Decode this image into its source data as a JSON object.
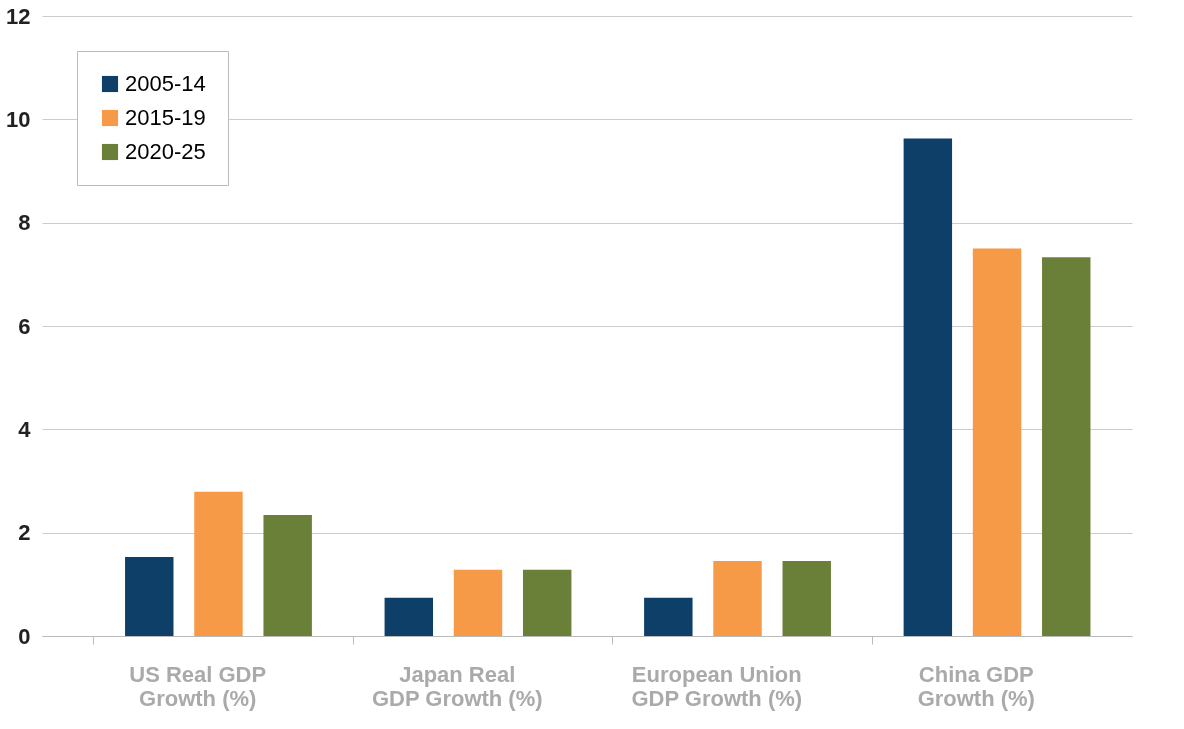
{
  "chart_data": {
    "type": "bar",
    "categories": [
      "US Real GDP\nGrowth (%)",
      "Japan Real\nGDP Growth (%)",
      "European Union\nGDP Growth (%)",
      "China GDP\nGrowth (%)"
    ],
    "series": [
      {
        "name": "2005-14",
        "color": "#0d3f68",
        "values": [
          1.53,
          0.74,
          0.74,
          9.63
        ]
      },
      {
        "name": "2015-19",
        "color": "#f79a47",
        "values": [
          2.79,
          1.28,
          1.45,
          7.5
        ]
      },
      {
        "name": "2020-25",
        "color": "#6a8039",
        "values": [
          2.34,
          1.28,
          1.45,
          7.33
        ]
      }
    ],
    "ylim": [
      0,
      12
    ],
    "yticks": [
      0,
      2,
      4,
      6,
      8,
      10,
      12
    ],
    "grid": "y",
    "legend": "top left"
  }
}
